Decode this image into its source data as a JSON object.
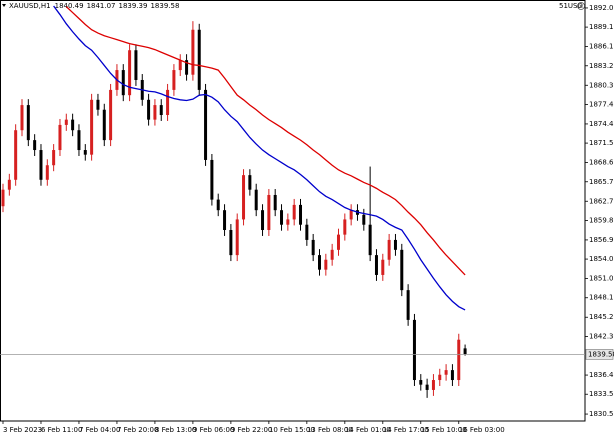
{
  "chart_data": {
    "type": "candlestick",
    "symbol": "XAUUSD,H1",
    "watermark": "51USD",
    "up_color": "#d62020",
    "down_color": "#000000",
    "categories": [
      "3 Feb 2023",
      null,
      null,
      null,
      null,
      null,
      "6 Feb 11:00",
      null,
      null,
      null,
      null,
      null,
      "7 Feb 04:00",
      null,
      null,
      null,
      null,
      null,
      "7 Feb 20:00",
      null,
      null,
      null,
      null,
      null,
      "8 Feb 13:00",
      null,
      null,
      null,
      null,
      null,
      "9 Feb 06:00",
      null,
      null,
      null,
      null,
      null,
      "9 Feb 22:00",
      null,
      null,
      null,
      null,
      null,
      "10 Feb 15:00",
      null,
      null,
      null,
      null,
      null,
      "13 Feb 08:00",
      null,
      null,
      null,
      null,
      null,
      "14 Feb 01:00",
      null,
      null,
      null,
      null,
      null,
      "14 Feb 17:00",
      null,
      null,
      null,
      null,
      null,
      "15 Feb 10:00",
      null,
      null,
      null,
      null,
      null,
      "16 Feb 03:00",
      null
    ],
    "open": [
      1862.0,
      1864.5,
      1866.0,
      1873.5,
      1877.3,
      1872.0,
      1870.5,
      1866.0,
      1868.2,
      1870.5,
      1874.3,
      1875.1,
      1873.5,
      1870.5,
      1869.8,
      1878.1,
      1876.6,
      1872.0,
      1879.6,
      1882.6,
      1878.8,
      1885.6,
      1881.1,
      1878.1,
      1875.1,
      1877.3,
      1875.8,
      1879.6,
      1882.6,
      1884.1,
      1881.9,
      1888.7,
      1879.6,
      1869.0,
      1863.0,
      1861.4,
      1858.4,
      1854.6,
      1860.0,
      1866.7,
      1864.5,
      1861.4,
      1858.4,
      1863.7,
      1861.4,
      1859.2,
      1860.0,
      1862.2,
      1859.2,
      1856.9,
      1854.6,
      1852.4,
      1853.9,
      1855.4,
      1857.7,
      1860.0,
      1861.4,
      1860.7,
      1859.2,
      1854.6,
      1851.6,
      1853.9,
      1856.9,
      1855.4,
      1849.3,
      1844.8,
      1835.7,
      1835.0,
      1834.2,
      1835.7,
      1836.5,
      1837.2,
      1835.7,
      1840.49
    ],
    "high": [
      1865.4,
      1866.9,
      1874.4,
      1878.2,
      1878.2,
      1872.9,
      1871.4,
      1869.1,
      1871.4,
      1875.2,
      1876.0,
      1876.0,
      1874.4,
      1871.4,
      1879.0,
      1879.0,
      1877.5,
      1880.5,
      1883.5,
      1883.5,
      1886.5,
      1886.5,
      1882.0,
      1879.0,
      1878.2,
      1878.2,
      1880.5,
      1883.5,
      1885.0,
      1885.0,
      1890.0,
      1889.6,
      1880.5,
      1869.9,
      1863.9,
      1862.3,
      1859.3,
      1860.9,
      1867.6,
      1867.6,
      1865.4,
      1862.3,
      1864.6,
      1864.6,
      1862.3,
      1860.9,
      1863.1,
      1863.1,
      1860.1,
      1857.8,
      1855.5,
      1854.8,
      1856.3,
      1858.6,
      1860.9,
      1862.3,
      1862.3,
      1861.6,
      1868.0,
      1855.5,
      1854.8,
      1857.8,
      1857.8,
      1856.3,
      1850.2,
      1845.7,
      1836.6,
      1835.9,
      1836.6,
      1837.4,
      1838.1,
      1838.1,
      1842.7,
      1841.07
    ],
    "low": [
      1861.1,
      1863.6,
      1865.1,
      1872.6,
      1871.1,
      1869.6,
      1865.1,
      1865.1,
      1867.3,
      1869.6,
      1873.4,
      1872.6,
      1869.6,
      1868.9,
      1868.9,
      1875.7,
      1871.1,
      1871.1,
      1878.7,
      1877.9,
      1877.9,
      1880.2,
      1877.2,
      1874.2,
      1874.2,
      1874.9,
      1874.9,
      1878.7,
      1881.7,
      1881.0,
      1881.0,
      1878.7,
      1868.1,
      1862.1,
      1860.5,
      1857.5,
      1853.7,
      1853.7,
      1859.1,
      1863.6,
      1860.5,
      1857.5,
      1857.5,
      1860.5,
      1858.3,
      1858.3,
      1859.1,
      1858.3,
      1856.0,
      1853.7,
      1851.5,
      1851.5,
      1853.0,
      1854.5,
      1856.8,
      1859.1,
      1859.8,
      1858.3,
      1853.7,
      1850.7,
      1850.7,
      1853.0,
      1854.5,
      1848.4,
      1843.9,
      1834.8,
      1834.1,
      1833.0,
      1833.3,
      1834.8,
      1835.6,
      1834.8,
      1834.8,
      1839.39
    ],
    "close": [
      1864.5,
      1866.0,
      1873.5,
      1877.3,
      1872.0,
      1870.5,
      1866.0,
      1868.2,
      1870.5,
      1874.3,
      1875.1,
      1873.5,
      1870.5,
      1869.8,
      1878.1,
      1876.6,
      1872.0,
      1879.6,
      1882.6,
      1878.8,
      1885.6,
      1881.1,
      1878.1,
      1875.1,
      1877.3,
      1875.8,
      1879.6,
      1882.6,
      1884.1,
      1881.9,
      1888.7,
      1879.6,
      1869.0,
      1863.0,
      1861.4,
      1858.4,
      1854.6,
      1860.0,
      1866.7,
      1864.5,
      1861.4,
      1858.4,
      1863.7,
      1861.4,
      1859.2,
      1860.0,
      1862.2,
      1859.2,
      1856.9,
      1854.6,
      1852.4,
      1853.9,
      1855.4,
      1857.7,
      1860.0,
      1861.4,
      1860.7,
      1859.2,
      1854.6,
      1851.6,
      1853.9,
      1856.9,
      1855.4,
      1849.3,
      1844.8,
      1835.7,
      1835.0,
      1834.2,
      1835.7,
      1836.5,
      1837.2,
      1835.7,
      1841.8,
      1839.58
    ],
    "series": [
      {
        "color": "#0000cc",
        "values": [
          null,
          null,
          null,
          null,
          null,
          null,
          null,
          null,
          1892.3,
          1891.0,
          1889.6,
          1888.4,
          1887.3,
          1886.3,
          1885.6,
          1884.5,
          1883.3,
          1882.1,
          1881.1,
          1880.4,
          1880.0,
          1879.8,
          1879.6,
          1879.4,
          1879.3,
          1879.0,
          1878.6,
          1878.3,
          1878.1,
          1878.0,
          1878.2,
          1878.8,
          1878.9,
          1878.5,
          1877.8,
          1876.6,
          1875.6,
          1874.8,
          1873.6,
          1872.4,
          1871.4,
          1870.5,
          1869.8,
          1869.2,
          1868.6,
          1868.0,
          1867.5,
          1866.8,
          1866.0,
          1865.1,
          1864.2,
          1863.5,
          1863.0,
          1862.4,
          1861.8,
          1861.4,
          1861.1,
          1860.9,
          1860.7,
          1860.5,
          1860.0,
          1859.3,
          1858.8,
          1858.4,
          1857.0,
          1855.5,
          1853.9,
          1852.5,
          1851.1,
          1849.8,
          1848.6,
          1847.6,
          1846.8,
          1846.3
        ]
      },
      {
        "color": "#dd0000",
        "values": [
          null,
          null,
          null,
          null,
          null,
          null,
          null,
          null,
          null,
          null,
          1892.2,
          1891.3,
          1890.4,
          1889.5,
          1888.7,
          1888.2,
          1887.8,
          1887.5,
          1887.2,
          1886.9,
          1886.6,
          1886.4,
          1886.2,
          1886.0,
          1885.7,
          1885.3,
          1884.9,
          1884.5,
          1884.1,
          1883.7,
          1883.4,
          1883.3,
          1883.1,
          1882.9,
          1882.6,
          1881.4,
          1880.1,
          1878.8,
          1878.1,
          1877.3,
          1876.6,
          1875.8,
          1875.1,
          1874.5,
          1873.9,
          1873.2,
          1872.6,
          1872.0,
          1871.3,
          1870.5,
          1869.8,
          1869.0,
          1868.2,
          1867.5,
          1867.0,
          1866.6,
          1866.1,
          1865.6,
          1865.2,
          1864.7,
          1864.1,
          1863.6,
          1863.0,
          1862.1,
          1861.1,
          1860.2,
          1859.2,
          1858.0,
          1856.9,
          1855.7,
          1854.6,
          1853.6,
          1852.6,
          1851.6
        ]
      }
    ],
    "ylim": [
      1829.5,
      1892.9
    ],
    "yticks": [
      {
        "value": 1892.0,
        "label": "1892.00"
      },
      {
        "value": 1889.1,
        "label": "1889.10"
      },
      {
        "value": 1886.15,
        "label": "1886.15"
      },
      {
        "value": 1883.25,
        "label": "1883.25"
      },
      {
        "value": 1880.3,
        "label": "1880.30"
      },
      {
        "value": 1877.4,
        "label": "1877.40"
      },
      {
        "value": 1874.45,
        "label": "1874.45"
      },
      {
        "value": 1871.55,
        "label": "1871.55"
      },
      {
        "value": 1868.6,
        "label": "1868.60"
      },
      {
        "value": 1865.7,
        "label": "1865.70"
      },
      {
        "value": 1862.75,
        "label": "1862.75"
      },
      {
        "value": 1859.85,
        "label": "1859.85"
      },
      {
        "value": 1856.9,
        "label": "1856.90"
      },
      {
        "value": 1854.0,
        "label": "1854.00"
      },
      {
        "value": 1851.05,
        "label": "1851.05"
      },
      {
        "value": 1848.15,
        "label": "1848.15"
      },
      {
        "value": 1845.2,
        "label": "1845.20"
      },
      {
        "value": 1842.3,
        "label": "1842.30"
      },
      {
        "value": 1836.45,
        "label": "1836.45"
      },
      {
        "value": 1833.55,
        "label": "1833.55"
      },
      {
        "value": 1830.55,
        "label": "1830.55"
      }
    ],
    "grid": false
  }
}
